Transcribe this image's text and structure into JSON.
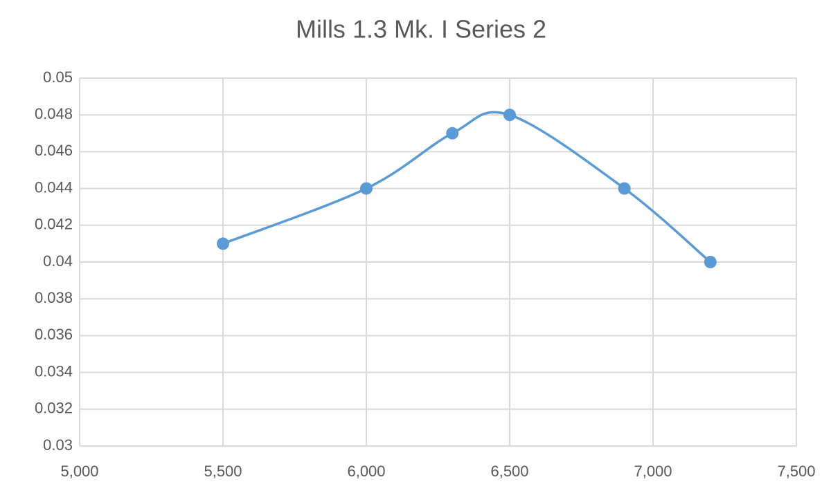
{
  "chart_data": {
    "type": "line",
    "title": "Mills 1.3 Mk. I Series 2",
    "smooth": true,
    "grid": true,
    "series": [
      {
        "name": "Series 2",
        "color": "#5b9bd5",
        "x": [
          5500,
          6000,
          6300,
          6500,
          6900,
          7200
        ],
        "values": [
          0.041,
          0.044,
          0.047,
          0.048,
          0.044,
          0.04
        ]
      }
    ],
    "xlim": [
      5000,
      7500
    ],
    "xticks": [
      {
        "value": 5000,
        "label": "5,000"
      },
      {
        "value": 5500,
        "label": "5,500"
      },
      {
        "value": 6000,
        "label": "6,000"
      },
      {
        "value": 6500,
        "label": "6,500"
      },
      {
        "value": 7000,
        "label": "7,000"
      },
      {
        "value": 7500,
        "label": "7,500"
      }
    ],
    "ylim": [
      0.03,
      0.05
    ],
    "yticks": [
      0.03,
      0.032,
      0.034,
      0.036,
      0.038,
      0.04,
      0.042,
      0.044,
      0.046,
      0.048,
      0.05
    ]
  }
}
